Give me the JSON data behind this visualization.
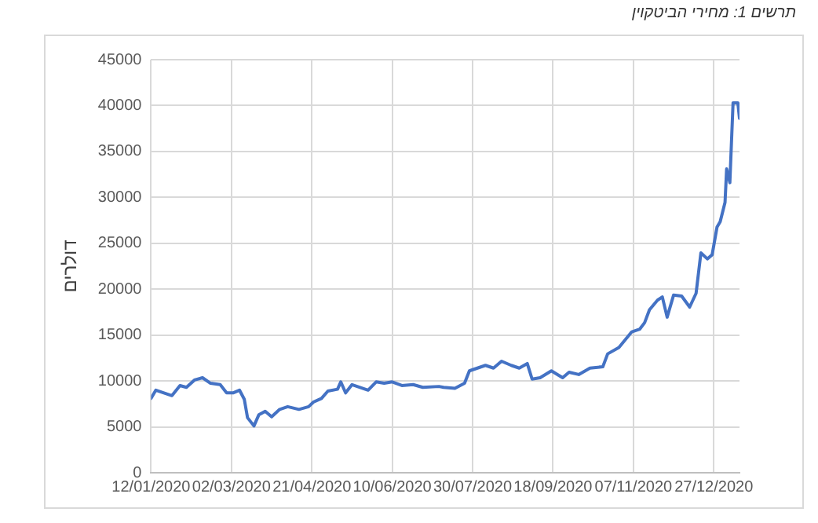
{
  "chart_data": {
    "type": "line",
    "title": "תרשים 1: מחירי הביטקוין",
    "ylabel": "דולרים",
    "x": [
      "2020-01-12",
      "2020-01-15",
      "2020-01-20",
      "2020-01-25",
      "2020-01-30",
      "2020-02-03",
      "2020-02-08",
      "2020-02-13",
      "2020-02-18",
      "2020-02-24",
      "2020-02-28",
      "2020-03-03",
      "2020-03-07",
      "2020-03-10",
      "2020-03-12",
      "2020-03-16",
      "2020-03-19",
      "2020-03-23",
      "2020-03-27",
      "2020-04-01",
      "2020-04-06",
      "2020-04-13",
      "2020-04-19",
      "2020-04-22",
      "2020-04-27",
      "2020-05-01",
      "2020-05-07",
      "2020-05-09",
      "2020-05-12",
      "2020-05-16",
      "2020-05-21",
      "2020-05-26",
      "2020-05-31",
      "2020-06-05",
      "2020-06-10",
      "2020-06-16",
      "2020-06-23",
      "2020-06-29",
      "2020-07-09",
      "2020-07-12",
      "2020-07-19",
      "2020-07-25",
      "2020-07-28",
      "2020-08-02",
      "2020-08-07",
      "2020-08-12",
      "2020-08-17",
      "2020-08-23",
      "2020-08-28",
      "2020-09-02",
      "2020-09-05",
      "2020-09-10",
      "2020-09-17",
      "2020-09-24",
      "2020-09-28",
      "2020-10-04",
      "2020-10-11",
      "2020-10-19",
      "2020-10-22",
      "2020-10-29",
      "2020-11-06",
      "2020-11-11",
      "2020-11-14",
      "2020-11-17",
      "2020-11-22",
      "2020-11-25",
      "2020-11-28",
      "2020-12-02",
      "2020-12-07",
      "2020-12-12",
      "2020-12-16",
      "2020-12-19",
      "2020-12-23",
      "2020-12-26",
      "2020-12-29",
      "2020-12-31",
      "2021-01-03",
      "2021-01-04",
      "2021-01-06",
      "2021-01-08",
      "2021-01-11",
      "2021-01-12"
    ],
    "series": [
      {
        "color": "#4472c4",
        "values": [
          8100,
          9000,
          8700,
          8400,
          9500,
          9300,
          10100,
          10350,
          9750,
          9600,
          8700,
          8700,
          9000,
          8000,
          6000,
          5100,
          6300,
          6700,
          6100,
          6900,
          7200,
          6900,
          7200,
          7700,
          8100,
          8900,
          9100,
          9900,
          8700,
          9600,
          9300,
          9000,
          9900,
          9750,
          9900,
          9500,
          9600,
          9300,
          9400,
          9300,
          9200,
          9750,
          11100,
          11400,
          11700,
          11400,
          12150,
          11700,
          11400,
          11900,
          10200,
          10350,
          11100,
          10350,
          10950,
          10700,
          11400,
          11550,
          12950,
          13650,
          15350,
          15650,
          16350,
          17750,
          18800,
          19150,
          16950,
          19350,
          19250,
          18050,
          19550,
          23950,
          23300,
          23750,
          26750,
          27350,
          29450,
          33100,
          31600,
          40300,
          40300,
          38600
        ]
      }
    ],
    "xlim": [
      "2020-01-12",
      "2021-01-12"
    ],
    "xticks": [
      {
        "value": "2020-01-12",
        "label": "12/01/2020"
      },
      {
        "value": "2020-03-02",
        "label": "02/03/2020"
      },
      {
        "value": "2020-04-21",
        "label": "21/04/2020"
      },
      {
        "value": "2020-06-10",
        "label": "10/06/2020"
      },
      {
        "value": "2020-07-30",
        "label": "30/07/2020"
      },
      {
        "value": "2020-09-18",
        "label": "18/09/2020"
      },
      {
        "value": "2020-11-07",
        "label": "07/11/2020"
      },
      {
        "value": "2020-12-27",
        "label": "27/12/2020"
      }
    ],
    "ylim": [
      0,
      45000
    ],
    "yticks": [
      0,
      5000,
      10000,
      15000,
      20000,
      25000,
      30000,
      35000,
      40000,
      45000
    ],
    "grid": true,
    "legend": false,
    "marker": "none",
    "line_style": "solid"
  }
}
